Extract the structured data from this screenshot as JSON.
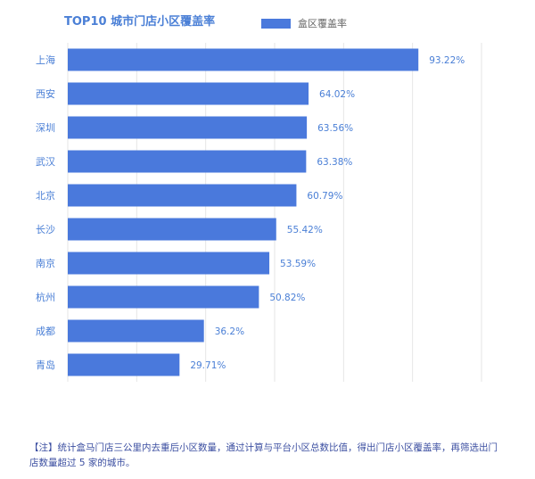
{
  "chart_data": {
    "type": "bar",
    "orientation": "horizontal",
    "title": "TOP10 城市门店小区覆盖率",
    "categories": [
      "上海",
      "西安",
      "深圳",
      "武汉",
      "北京",
      "长沙",
      "南京",
      "杭州",
      "成都",
      "青岛"
    ],
    "series": [
      {
        "name": "盒区覆盖率",
        "values": [
          93.22,
          64.02,
          63.56,
          63.38,
          60.79,
          55.42,
          53.59,
          50.82,
          36.2,
          29.71
        ],
        "labels": [
          "93.22%",
          "64.02%",
          "63.56%",
          "63.38%",
          "60.79%",
          "55.42%",
          "53.59%",
          "50.82%",
          "36.2%",
          "29.71%"
        ]
      }
    ],
    "xlim": [
      0,
      110
    ],
    "grid": true,
    "legend_position": "top",
    "colors": {
      "bar": "#4a79dc",
      "text": "#4a7fd6",
      "grid": "#e6e6e6"
    }
  },
  "footnote": "【注】统计盒马门店三公里内去重后小区数量，通过计算与平台小区总数比值，得出门店小区覆盖率，再筛选出门店数量超过 5 家的城市。"
}
